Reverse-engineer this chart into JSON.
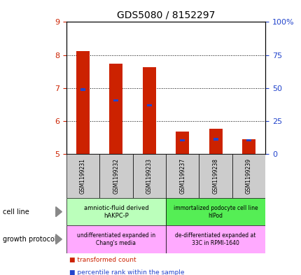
{
  "title": "GDS5080 / 8152297",
  "samples": [
    "GSM1199231",
    "GSM1199232",
    "GSM1199233",
    "GSM1199237",
    "GSM1199238",
    "GSM1199239"
  ],
  "red_values": [
    8.12,
    7.73,
    7.63,
    5.67,
    5.77,
    5.45
  ],
  "blue_values": [
    6.95,
    6.62,
    6.47,
    5.42,
    5.45,
    5.42
  ],
  "y_min": 5,
  "y_max": 9,
  "y_ticks": [
    5,
    6,
    7,
    8,
    9
  ],
  "y2_ticks": [
    0,
    25,
    50,
    75,
    100
  ],
  "y2_labels": [
    "0",
    "25",
    "50",
    "75",
    "100%"
  ],
  "cell_line_label1": "amniotic-fluid derived\nhAKPC-P",
  "cell_line_label2": "immortalized podocyte cell line\nhIPod",
  "cell_line_color1": "#bbffbb",
  "cell_line_color2": "#55ee55",
  "growth_label1": "undifferentiated expanded in\nChang's media",
  "growth_label2": "de-differentiated expanded at\n33C in RPMI-1640",
  "growth_color": "#ffaaff",
  "bar_color": "#cc2200",
  "blue_color": "#2244cc",
  "tick_color_left": "#cc2200",
  "tick_color_right": "#2244cc",
  "sample_box_color": "#cccccc",
  "legend_red_label": "transformed count",
  "legend_blue_label": "percentile rank within the sample",
  "left_label1": "cell line",
  "left_label2": "growth protocol"
}
